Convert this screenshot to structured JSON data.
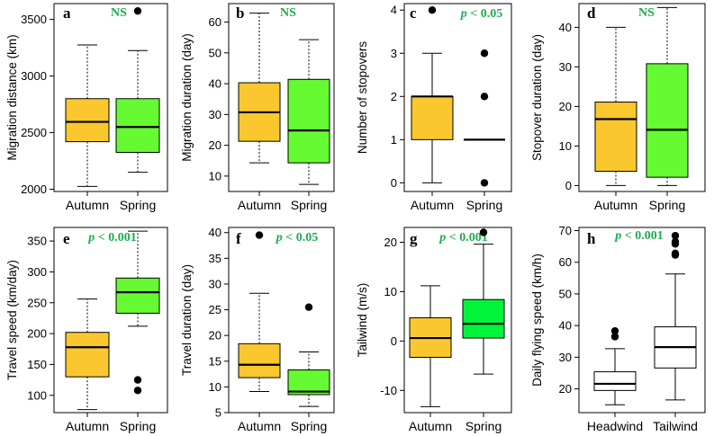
{
  "colors": {
    "autumn": "#fbc72e",
    "spring": "#66fa33",
    "spring_bright": "#00f43a",
    "white": "#ffffff",
    "significance": "#1faa4f"
  },
  "chart_data": [
    {
      "type": "box",
      "letter": "a",
      "significance": {
        "p": "",
        "text": "NS"
      },
      "ylabel": "Migration distance (km)",
      "ylim": [
        1980,
        3640
      ],
      "yticks": [
        2000,
        2500,
        3000,
        3500
      ],
      "categories": [
        "Autumn",
        "Spring"
      ],
      "boxes": [
        {
          "category": "Autumn",
          "whisker_low": 2025,
          "q1": 2420,
          "median": 2595,
          "q3": 2800,
          "whisker_high": 3275,
          "outliers": [],
          "color": "autumn",
          "whisker_style": "dotted"
        },
        {
          "category": "Spring",
          "whisker_low": 2150,
          "q1": 2325,
          "median": 2550,
          "q3": 2800,
          "whisker_high": 3225,
          "outliers": [
            3575
          ],
          "color": "spring",
          "whisker_style": "dotted"
        }
      ]
    },
    {
      "type": "box",
      "letter": "b",
      "significance": {
        "p": "",
        "text": "NS"
      },
      "ylabel": "Migration duration (day)",
      "ylim": [
        5,
        66
      ],
      "yticks": [
        10,
        20,
        30,
        40,
        50,
        60
      ],
      "categories": [
        "Autumn",
        "Spring"
      ],
      "boxes": [
        {
          "category": "Autumn",
          "whisker_low": 14.3,
          "q1": 21.3,
          "median": 30.7,
          "q3": 40.3,
          "whisker_high": 62.9,
          "outliers": [],
          "color": "autumn",
          "whisker_style": "dotted"
        },
        {
          "category": "Spring",
          "whisker_low": 7.3,
          "q1": 14.3,
          "median": 24.8,
          "q3": 41.4,
          "whisker_high": 54.3,
          "outliers": [],
          "color": "spring",
          "whisker_style": "dotted"
        }
      ]
    },
    {
      "type": "box",
      "letter": "c",
      "significance": {
        "p": "p",
        "text": " < 0.05"
      },
      "ylabel": "Number of stopovers",
      "ylim": [
        -0.2,
        4.15
      ],
      "yticks": [
        0,
        1,
        2,
        3,
        4
      ],
      "categories": [
        "Autumn",
        "Spring"
      ],
      "boxes": [
        {
          "category": "Autumn",
          "whisker_low": 0,
          "q1": 1,
          "median": 2,
          "q3": 2,
          "whisker_high": 3,
          "outliers": [
            4
          ],
          "color": "autumn",
          "whisker_style": "solid"
        },
        {
          "category": "Spring",
          "whisker_low": 1,
          "q1": 1,
          "median": 1,
          "q3": 1,
          "whisker_high": 1,
          "outliers": [
            3,
            2,
            0
          ],
          "color": "spring",
          "whisker_style": "none"
        }
      ]
    },
    {
      "type": "box",
      "letter": "d",
      "significance": {
        "p": "",
        "text": "NS"
      },
      "ylabel": "Stopover duration (day)",
      "ylim": [
        -1.5,
        46
      ],
      "yticks": [
        0,
        10,
        20,
        30,
        40
      ],
      "categories": [
        "Autumn",
        "Spring"
      ],
      "boxes": [
        {
          "category": "Autumn",
          "whisker_low": 0,
          "q1": 3.6,
          "median": 16.8,
          "q3": 21.1,
          "whisker_high": 40,
          "outliers": [],
          "color": "autumn",
          "whisker_style": "dotted"
        },
        {
          "category": "Spring",
          "whisker_low": 0,
          "q1": 2.1,
          "median": 14.1,
          "q3": 30.8,
          "whisker_high": 45,
          "outliers": [],
          "color": "spring",
          "whisker_style": "dotted"
        }
      ]
    },
    {
      "type": "box",
      "letter": "e",
      "significance": {
        "p": "p",
        "text": " < 0.001"
      },
      "ylabel": "Travel speed (km/day)",
      "ylim": [
        72,
        372
      ],
      "yticks": [
        100,
        150,
        200,
        250,
        300,
        350
      ],
      "categories": [
        "Autumn",
        "Spring"
      ],
      "boxes": [
        {
          "category": "Autumn",
          "whisker_low": 77,
          "q1": 130,
          "median": 178,
          "q3": 202,
          "whisker_high": 256,
          "outliers": [],
          "color": "autumn",
          "whisker_style": "dotted"
        },
        {
          "category": "Spring",
          "whisker_low": 212,
          "q1": 233,
          "median": 267,
          "q3": 290,
          "whisker_high": 366,
          "outliers": [
            125,
            108
          ],
          "color": "spring",
          "whisker_style": "dotted"
        }
      ]
    },
    {
      "type": "box",
      "letter": "f",
      "significance": {
        "p": "p",
        "text": " < 0.05"
      },
      "ylabel": "Travel duration (day)",
      "ylim": [
        5,
        41
      ],
      "yticks": [
        5,
        10,
        15,
        20,
        25,
        30,
        35,
        40
      ],
      "categories": [
        "Autumn",
        "Spring"
      ],
      "boxes": [
        {
          "category": "Autumn",
          "whisker_low": 9.1,
          "q1": 11.8,
          "median": 14.3,
          "q3": 18.4,
          "whisker_high": 28.2,
          "outliers": [
            39.5
          ],
          "color": "autumn",
          "whisker_style": "dotted"
        },
        {
          "category": "Spring",
          "whisker_low": 6.2,
          "q1": 8.5,
          "median": 9.1,
          "q3": 13.3,
          "whisker_high": 16.8,
          "outliers": [
            25.5
          ],
          "color": "spring",
          "whisker_style": "dotted"
        }
      ]
    },
    {
      "type": "box",
      "letter": "g",
      "significance": {
        "p": "p",
        "text": " < 0.001"
      },
      "ylabel": "Tailwind (m/s)",
      "ylim": [
        -14.5,
        23
      ],
      "yticks": [
        -10,
        0,
        10,
        20
      ],
      "categories": [
        "Autumn",
        "Spring"
      ],
      "boxes": [
        {
          "category": "Autumn",
          "whisker_low": -13.3,
          "q1": -3.3,
          "median": 0.6,
          "q3": 4.7,
          "whisker_high": 11.2,
          "outliers": [],
          "color": "autumn",
          "whisker_style": "solid"
        },
        {
          "category": "Spring",
          "whisker_low": -6.7,
          "q1": 0.6,
          "median": 3.5,
          "q3": 8.4,
          "whisker_high": 19.6,
          "outliers": [
            22
          ],
          "color": "spring_bright",
          "whisker_style": "solid"
        }
      ]
    },
    {
      "type": "box",
      "letter": "h",
      "significance": {
        "p": "p",
        "text": " < 0.001"
      },
      "ylabel": "Daily flying speed (km/h)",
      "ylim": [
        12.5,
        71
      ],
      "yticks": [
        20,
        30,
        40,
        50,
        60,
        70
      ],
      "categories": [
        "Headwind",
        "Tailwind"
      ],
      "boxes": [
        {
          "category": "Headwind",
          "whisker_low": 15,
          "q1": 19.5,
          "median": 21.6,
          "q3": 25.4,
          "whisker_high": 32.7,
          "outliers": [
            36.5,
            38.3
          ],
          "color": "white",
          "whisker_style": "solid"
        },
        {
          "category": "Tailwind",
          "whisker_low": 16.5,
          "q1": 26.6,
          "median": 33.2,
          "q3": 39.6,
          "whisker_high": 56.3,
          "outliers": [
            62.3,
            62.8,
            65.8,
            66.5,
            68.4
          ],
          "color": "white",
          "whisker_style": "solid"
        }
      ]
    }
  ]
}
